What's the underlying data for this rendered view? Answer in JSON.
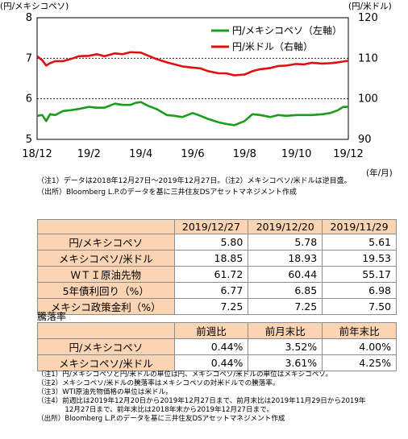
{
  "chart_data": {
    "type": "line",
    "left_axis": {
      "label": "(円/メキシコペソ)",
      "ticks": [
        "8",
        "7",
        "6",
        "5"
      ],
      "ylim": [
        5,
        8
      ]
    },
    "right_axis": {
      "label": "(円/米ドル)",
      "ticks": [
        "120",
        "110",
        "100",
        "90"
      ],
      "ylim": [
        90,
        120
      ]
    },
    "x_ticks": [
      "18/12",
      "19/2",
      "19/4",
      "19/6",
      "19/8",
      "19/10",
      "19/12"
    ],
    "x_unit": "(年/月)",
    "xlim": [
      0,
      12
    ],
    "legend": {
      "position": "top-right"
    },
    "series": [
      {
        "name": "円/メキシコペソ（左軸）",
        "axis": "left",
        "color": "#1a9e1a",
        "x": [
          0,
          0.2,
          0.35,
          0.5,
          0.7,
          1,
          1.3,
          1.6,
          2,
          2.3,
          2.6,
          3,
          3.3,
          3.6,
          3.8,
          4,
          4.3,
          4.6,
          5,
          5.3,
          5.6,
          6,
          6.3,
          6.6,
          7,
          7.3,
          7.6,
          8,
          8.3,
          8.6,
          9,
          9.3,
          9.6,
          10,
          10.3,
          10.6,
          11,
          11.3,
          11.6,
          11.8,
          12
        ],
        "y": [
          5.58,
          5.6,
          5.45,
          5.62,
          5.6,
          5.7,
          5.72,
          5.75,
          5.8,
          5.78,
          5.78,
          5.88,
          5.85,
          5.85,
          5.9,
          5.92,
          5.82,
          5.75,
          5.6,
          5.58,
          5.55,
          5.65,
          5.58,
          5.5,
          5.42,
          5.38,
          5.35,
          5.45,
          5.62,
          5.6,
          5.55,
          5.6,
          5.58,
          5.6,
          5.6,
          5.6,
          5.62,
          5.65,
          5.72,
          5.8,
          5.8
        ]
      },
      {
        "name": "円/米ドル（右軸）",
        "axis": "right",
        "color": "#e01010",
        "x": [
          0,
          0.2,
          0.35,
          0.5,
          0.7,
          1,
          1.3,
          1.6,
          2,
          2.3,
          2.6,
          3,
          3.3,
          3.6,
          4,
          4.3,
          4.6,
          5,
          5.3,
          5.6,
          6,
          6.3,
          6.6,
          7,
          7.3,
          7.6,
          8,
          8.3,
          8.6,
          9,
          9.3,
          9.6,
          10,
          10.3,
          10.6,
          11,
          11.3,
          11.6,
          12
        ],
        "y": [
          110.5,
          109.5,
          108.2,
          108.8,
          109.3,
          109.3,
          109.8,
          110.5,
          110.6,
          111.0,
          110.5,
          111.2,
          111.0,
          111.5,
          111.4,
          110.6,
          109.8,
          109.0,
          108.5,
          108.0,
          107.7,
          107.5,
          106.8,
          106.3,
          106.3,
          105.8,
          106.0,
          106.8,
          107.3,
          107.6,
          108.1,
          108.2,
          108.6,
          108.5,
          108.9,
          108.7,
          108.8,
          109.0,
          109.4
        ]
      }
    ]
  },
  "chart_notes": [
    "（注1）データは2018年12月27日～2019年12月27日。（注2）メキシコペソ/米ドルは逆目盛。",
    "（出所）Bloomberg L.P.のデータを基に三井住友DSアセットマネジメント作成"
  ],
  "table1": {
    "headers": [
      "2019/12/27",
      "2019/12/20",
      "2019/11/29"
    ],
    "rows": [
      {
        "label": "円/メキシコペソ",
        "values": [
          "5.80",
          "5.78",
          "5.61"
        ]
      },
      {
        "label": "メキシコペソ/米ドル",
        "values": [
          "18.85",
          "18.93",
          "19.53"
        ]
      },
      {
        "label": "ＷＴＩ原油先物",
        "values": [
          "61.72",
          "60.44",
          "55.17"
        ]
      },
      {
        "label": "5年債利回り（%）",
        "values": [
          "6.77",
          "6.85",
          "6.98"
        ]
      },
      {
        "label": "メキシコ政策金利（%）",
        "values": [
          "7.25",
          "7.25",
          "7.50"
        ]
      }
    ]
  },
  "table2": {
    "title": "騰落率",
    "headers": [
      "前週比",
      "前月末比",
      "前年末比"
    ],
    "rows": [
      {
        "label": "円/メキシコペソ",
        "values": [
          "0.44%",
          "3.52%",
          "4.00%"
        ]
      },
      {
        "label": "メキシコペソ/米ドル",
        "values": [
          "0.44%",
          "3.61%",
          "4.25%"
        ]
      }
    ]
  },
  "footnotes": [
    "（注1）円/メキシコペソと円/米ドルの単位は円、メキシコペソ/米ドルの単位はメキシコペソ。",
    "（注2）メキシコペソ/米ドルの騰落率はメキシコペソの対米ドルでの騰落率。",
    "（注3）WTI原油先物価格の単位は米ドル。",
    "（注4）前週比は2019年12月20日から2019年12月27日まで、前月末比は2019年11月29日から2019年",
    "　　　　12月27日まで、前年末比は2018年末から2019年12月27日まで。",
    "（出所）Bloomberg L.P.のデータを基に三井住友DSアセットマネジメント作成"
  ]
}
